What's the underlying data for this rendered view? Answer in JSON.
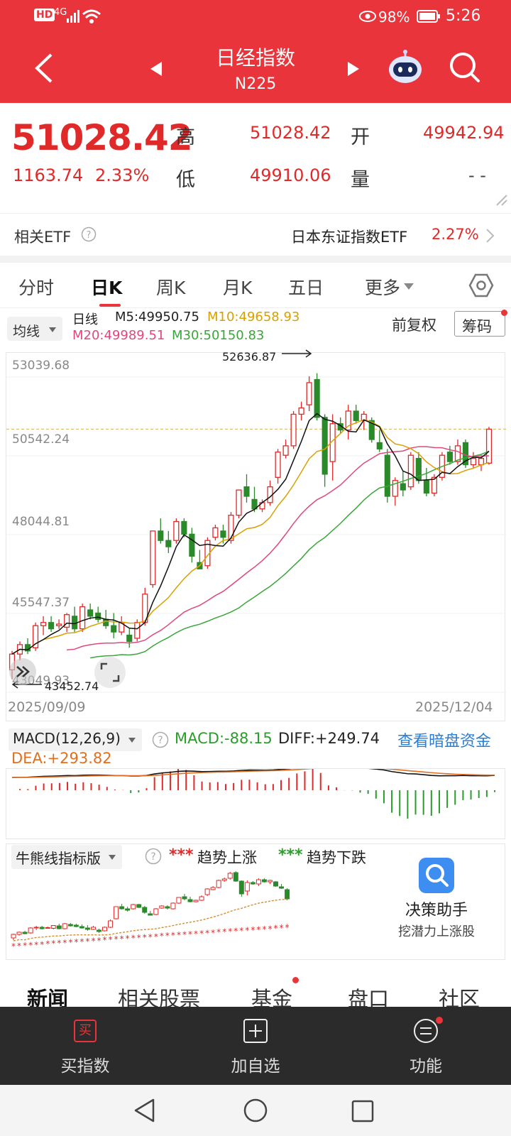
{
  "status": {
    "hd": "HD",
    "net": "4G",
    "battery_pct": "98%",
    "time": "5:26"
  },
  "title": {
    "name": "日经指数",
    "code": "N225"
  },
  "quote": {
    "price": "51028.42",
    "change": "1163.74",
    "change_pct": "2.33%",
    "high_label": "高",
    "high": "51028.42",
    "low_label": "低",
    "low": "49910.06",
    "open_label": "开",
    "open": "49942.94",
    "vol_label": "量",
    "vol": "- -"
  },
  "etf": {
    "label": "相关ETF",
    "name": "日本东证指数ETF",
    "pct": "2.27%"
  },
  "ktabs": [
    "分时",
    "日K",
    "周K",
    "月K",
    "五日",
    "更多"
  ],
  "ma": {
    "button": "均线",
    "period": "日线",
    "m5": "M5:49950.75",
    "m10": "M10:49658.93",
    "m20": "M20:49989.51",
    "m30": "M30:50150.83",
    "adjust": "前复权",
    "chip": "筹码"
  },
  "chart_data": {
    "type": "candlestick",
    "y_ticks": [
      "53039.68",
      "50542.24",
      "48044.81",
      "45547.37",
      "43049.93"
    ],
    "ylim": [
      43049.93,
      53039.68
    ],
    "x_start": "2025/09/09",
    "x_end": "2025/12/04",
    "max_label": "52636.87",
    "min_label": "43452.74",
    "candles": [
      [
        43400,
        44000,
        43100,
        43900
      ],
      [
        43900,
        44300,
        43700,
        44200
      ],
      [
        44200,
        44400,
        43900,
        44000
      ],
      [
        44100,
        44900,
        44000,
        44800
      ],
      [
        44800,
        45100,
        44500,
        44900
      ],
      [
        44900,
        45100,
        44600,
        44700
      ],
      [
        44800,
        45000,
        44700,
        44850
      ],
      [
        44750,
        45200,
        44600,
        45150
      ],
      [
        45100,
        45400,
        44600,
        44700
      ],
      [
        44700,
        45500,
        44600,
        45400
      ],
      [
        45300,
        45500,
        45000,
        45100
      ],
      [
        45200,
        45400,
        44900,
        45000
      ],
      [
        45000,
        45300,
        44700,
        44800
      ],
      [
        44800,
        45200,
        44400,
        44600
      ],
      [
        44600,
        45100,
        44500,
        44900
      ],
      [
        44500,
        44700,
        44100,
        44300
      ],
      [
        44400,
        45000,
        44300,
        44900
      ],
      [
        44900,
        46000,
        44800,
        45800
      ],
      [
        46100,
        47800,
        46000,
        47800
      ],
      [
        47800,
        48200,
        47400,
        47500
      ],
      [
        47500,
        47800,
        47100,
        47300
      ],
      [
        47500,
        48200,
        47400,
        48100
      ],
      [
        48100,
        48200,
        47600,
        47700
      ],
      [
        47700,
        47900,
        46800,
        47000
      ],
      [
        46800,
        47200,
        46600,
        46600
      ],
      [
        46700,
        47600,
        46600,
        47500
      ],
      [
        47600,
        48000,
        47500,
        47900
      ],
      [
        47800,
        48000,
        47400,
        47600
      ],
      [
        47500,
        48400,
        47400,
        48300
      ],
      [
        48300,
        49100,
        48200,
        49100
      ],
      [
        49200,
        49600,
        48700,
        48900
      ],
      [
        48800,
        49200,
        48400,
        48500
      ],
      [
        48500,
        48800,
        48400,
        48700
      ],
      [
        48700,
        49400,
        48600,
        49200
      ],
      [
        49500,
        50400,
        49300,
        50300
      ],
      [
        50200,
        50700,
        50100,
        50500
      ],
      [
        50500,
        51600,
        50400,
        51500
      ],
      [
        51500,
        51900,
        51300,
        51700
      ],
      [
        51800,
        52700,
        51600,
        52500
      ],
      [
        52600,
        52800,
        51300,
        51400
      ],
      [
        51400,
        51500,
        49200,
        49600
      ],
      [
        50000,
        51500,
        49400,
        51200
      ],
      [
        51200,
        51400,
        50900,
        51000
      ],
      [
        51000,
        51800,
        50700,
        51600
      ],
      [
        51600,
        51800,
        51200,
        51300
      ],
      [
        51300,
        51600,
        51000,
        51500
      ],
      [
        51300,
        51400,
        50600,
        50700
      ],
      [
        50600,
        51000,
        50300,
        50400
      ],
      [
        50200,
        50400,
        48700,
        48900
      ],
      [
        48900,
        49500,
        48600,
        49400
      ],
      [
        49300,
        49700,
        48900,
        49100
      ],
      [
        49200,
        50300,
        49100,
        50200
      ],
      [
        50100,
        50300,
        49300,
        49400
      ],
      [
        49400,
        49800,
        48900,
        49000
      ],
      [
        49000,
        49600,
        48900,
        49500
      ],
      [
        49500,
        50300,
        49400,
        50200
      ],
      [
        50300,
        50500,
        49900,
        50000
      ],
      [
        50000,
        50700,
        49900,
        50500
      ],
      [
        50600,
        50700,
        49800,
        49900
      ],
      [
        49900,
        50300,
        49800,
        50100
      ],
      [
        49900,
        50200,
        49700,
        50100
      ],
      [
        49950,
        51100,
        49900,
        51028
      ]
    ]
  },
  "macd": {
    "name": "MACD(12,26,9)",
    "macd": "MACD:-88.15",
    "diff": "DIFF:+249.74",
    "dea": "DEA:+293.82",
    "link": "查看暗盘资金"
  },
  "bullbear": {
    "name": "牛熊线指标版",
    "up": "趋势上涨",
    "down": "趋势下跌"
  },
  "decision": {
    "title": "决策助手",
    "sub": "挖潜力上涨股"
  },
  "newstabs": [
    "新闻",
    "相关股票",
    "基金",
    "盘口",
    "社区"
  ],
  "bottom": {
    "buy_icon": "买",
    "buy": "买指数",
    "add": "加自选",
    "func": "功能"
  },
  "colors": {
    "red": "#e02a2a",
    "green": "#2a9d2a",
    "header": "#e8343a"
  }
}
